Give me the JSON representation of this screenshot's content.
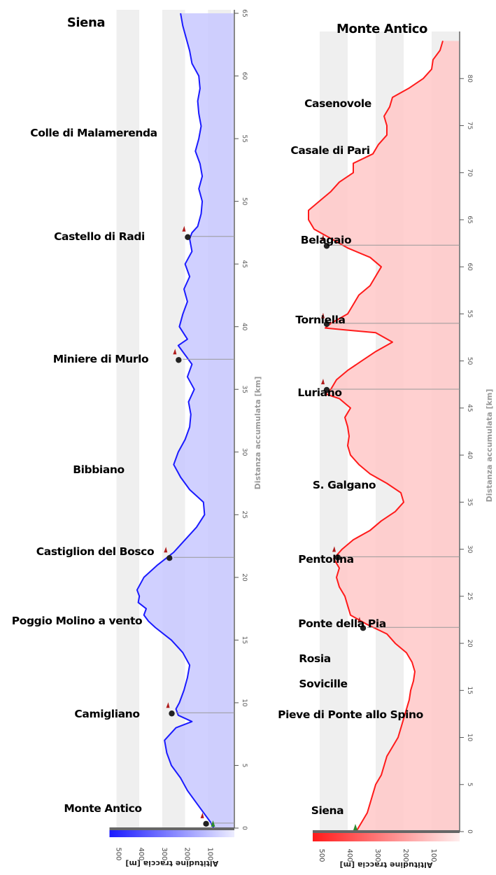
{
  "chart_data": [
    {
      "type": "area",
      "direction": "Siena → Monte Antico",
      "xlabel": "Distanza accumulata [km]",
      "ylabel": "Altitudine traccia [m]",
      "xlim": [
        0,
        65
      ],
      "x_ticks": [
        0,
        5,
        10,
        15,
        20,
        25,
        30,
        35,
        40,
        45,
        50,
        55,
        60,
        65
      ],
      "y_ticks": [
        500,
        400,
        300,
        200,
        100
      ],
      "color": "#1a1aff",
      "fill": "#c8c8ff",
      "series": [
        {
          "km": [
            0,
            0.5,
            1,
            2,
            3,
            4,
            5,
            6,
            7,
            8,
            8.5,
            9,
            9.5,
            10,
            11,
            12,
            13,
            14,
            15,
            16,
            16.5,
            17,
            17.5,
            18,
            18.5,
            19,
            19.5,
            20,
            21,
            22,
            23,
            24,
            25,
            26,
            27,
            28,
            29,
            30,
            31,
            32,
            33,
            34,
            35,
            36,
            37,
            38,
            38.5,
            39,
            40,
            41,
            42,
            43,
            44,
            45,
            46,
            47,
            47.5,
            48,
            49,
            50,
            51,
            52,
            53,
            54,
            55,
            56,
            57,
            58,
            59,
            60,
            61,
            62,
            63,
            64,
            65
          ],
          "alt": [
            75,
            90,
            110,
            150,
            190,
            220,
            260,
            280,
            290,
            240,
            170,
            230,
            240,
            225,
            205,
            190,
            180,
            210,
            260,
            330,
            360,
            380,
            370,
            405,
            400,
            410,
            395,
            380,
            320,
            250,
            200,
            150,
            115,
            120,
            180,
            220,
            250,
            230,
            200,
            180,
            175,
            185,
            160,
            190,
            170,
            210,
            230,
            190,
            225,
            210,
            190,
            205,
            180,
            200,
            170,
            180,
            170,
            145,
            130,
            125,
            140,
            125,
            135,
            155,
            140,
            130,
            140,
            145,
            135,
            140,
            170,
            180,
            195,
            210,
            220
          ]
        }
      ],
      "places": [
        {
          "name": "Siena",
          "km": 65.0
        },
        {
          "name": "Colle di Malamerenda",
          "km": 54.7
        },
        {
          "name": "Castello di Radi",
          "km": 47.2
        },
        {
          "name": "Miniere di Murlo",
          "km": 37.4
        },
        {
          "name": "Bibbiano",
          "km": 28.3
        },
        {
          "name": "Castiglion del Bosco",
          "km": 21.6
        },
        {
          "name": "Poggio Molino a vento",
          "km": 16.4
        },
        {
          "name": "Camigliano",
          "km": 9.2
        },
        {
          "name": "Monte Antico",
          "km": 1.0
        }
      ],
      "markers_km": [
        47.2,
        37.4,
        21.6,
        9.2,
        0.4
      ]
    },
    {
      "type": "area",
      "direction": "Monte Antico → Siena",
      "xlabel": "Distanza accumulata [km]",
      "ylabel": "Altitudine traccia [m]",
      "xlim": [
        0,
        85
      ],
      "x_ticks": [
        0,
        5,
        10,
        15,
        20,
        25,
        30,
        35,
        40,
        45,
        50,
        55,
        60,
        65,
        70,
        75,
        80
      ],
      "y_ticks": [
        500,
        400,
        300,
        200,
        100
      ],
      "color": "#ff1a1a",
      "fill": "#ffc8c8",
      "series": [
        {
          "km": [
            0,
            1,
            2,
            3,
            4,
            5,
            6,
            7,
            8,
            9,
            10,
            11,
            12,
            13,
            14,
            15,
            16,
            17,
            18,
            19,
            20,
            21,
            22,
            23,
            24,
            25,
            26,
            27,
            28,
            29,
            30,
            31,
            32,
            33,
            34,
            35,
            36,
            37,
            38,
            39,
            40,
            41,
            42,
            43,
            44,
            45,
            46,
            46.5,
            47,
            48,
            49,
            50,
            51,
            52,
            53,
            53.5,
            54,
            55,
            56,
            57,
            58,
            59,
            60,
            61,
            62,
            63,
            64,
            65,
            66,
            67,
            68,
            69,
            70,
            71,
            72,
            73,
            74,
            75,
            76,
            77,
            78,
            79,
            80,
            81,
            82,
            83,
            84
          ],
          "alt": [
            370,
            350,
            330,
            320,
            310,
            300,
            280,
            270,
            260,
            240,
            220,
            210,
            200,
            190,
            180,
            175,
            165,
            160,
            170,
            190,
            230,
            260,
            330,
            390,
            400,
            410,
            430,
            440,
            430,
            450,
            420,
            380,
            320,
            280,
            230,
            200,
            210,
            260,
            320,
            360,
            390,
            400,
            395,
            400,
            410,
            390,
            430,
            480,
            460,
            440,
            400,
            350,
            300,
            240,
            300,
            480,
            460,
            400,
            380,
            360,
            320,
            300,
            280,
            320,
            400,
            460,
            520,
            540,
            540,
            500,
            460,
            430,
            380,
            380,
            310,
            290,
            260,
            260,
            270,
            250,
            240,
            180,
            130,
            100,
            95,
            70,
            60
          ]
        }
      ],
      "places": [
        {
          "name": "Monte Antico",
          "km": 85.2
        },
        {
          "name": "Casenovole",
          "km": 77.6
        },
        {
          "name": "Casale di Pari",
          "km": 72.4
        },
        {
          "name": "Belagaio",
          "km": 62.5
        },
        {
          "name": "Torniella",
          "km": 54.5
        },
        {
          "name": "Luriano",
          "km": 47.2
        },
        {
          "name": "S. Galgano",
          "km": 37.0
        },
        {
          "name": "Pentolina",
          "km": 28.8
        },
        {
          "name": "Ponte della Pia",
          "km": 21.2
        },
        {
          "name": "Rosia",
          "km": 17.2
        },
        {
          "name": "Sovicille",
          "km": 15.1
        },
        {
          "name": "Pieve di Ponte allo Spino",
          "km": 12.8
        },
        {
          "name": "Siena",
          "km": 3.5
        }
      ],
      "markers_km": [
        62.3,
        54.0,
        47.0,
        29.2,
        21.7
      ]
    }
  ]
}
